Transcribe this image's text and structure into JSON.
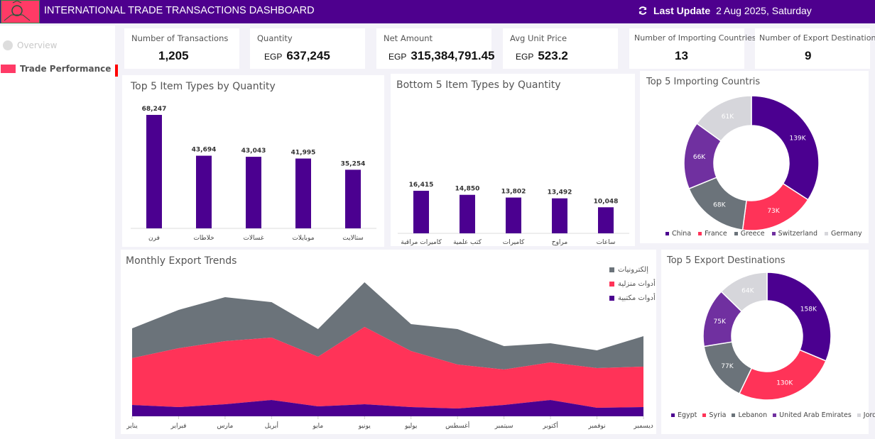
{
  "header": {
    "title": "INTERNATIONAL TRADE TRANSACTIONS DASHBOARD",
    "last_update_label": "Last Update",
    "last_update_value": "2 Aug 2025, Saturday"
  },
  "sidebar": {
    "items": [
      {
        "label": "Overview",
        "active": false
      },
      {
        "label": "Trade Performance",
        "active": true
      }
    ]
  },
  "kpis": [
    {
      "label": "Number of Transactions",
      "prefix": "",
      "value": "1,205"
    },
    {
      "label": "Quantity",
      "prefix": "EGP",
      "value": "637,245"
    },
    {
      "label": "Net Amount",
      "prefix": "EGP",
      "value": "315,384,791.45"
    },
    {
      "label": "Avg Unit Price",
      "prefix": "EGP",
      "value": "523.2"
    },
    {
      "label": "Number of Importing Countries",
      "prefix": "",
      "value": "13"
    },
    {
      "label": "Number of Export Destinations",
      "prefix": "",
      "value": "9"
    }
  ],
  "colors": {
    "purple": "#4b0090",
    "red": "#ff3358",
    "gray": "#6b737a",
    "violet": "#7030a0",
    "light": "#d6d6db"
  },
  "chart_data": [
    {
      "type": "bar",
      "title": "Top 5 Item Types by Quantity",
      "categories": [
        "فرن",
        "خلاطات",
        "غسالات",
        "موبايلات",
        "ستالايت"
      ],
      "values": [
        68247,
        43694,
        43043,
        41995,
        35254
      ],
      "labels": [
        "68,247",
        "43,694",
        "43,043",
        "41,995",
        "35,254"
      ]
    },
    {
      "type": "bar",
      "title": "Bottom 5 Item Types by Quantity",
      "categories": [
        "كاميرات مراقبة",
        "كتب علمية",
        "كاميرات",
        "مراوح",
        "ساعات"
      ],
      "values": [
        16415,
        14850,
        13802,
        13492,
        10048
      ],
      "labels": [
        "16,415",
        "14,850",
        "13,802",
        "13,492",
        "10,048"
      ]
    },
    {
      "type": "pie",
      "title": "Top 5 Importing Countris",
      "categories": [
        "China",
        "France",
        "Greece",
        "Switzerland",
        "Germany"
      ],
      "values": [
        139,
        73,
        68,
        66,
        61
      ],
      "labels": [
        "139K",
        "73K",
        "68K",
        "66K",
        "61K"
      ]
    },
    {
      "type": "area",
      "title": "Monthly Export Trends",
      "categories": [
        "يناير",
        "فبراير",
        "مارس",
        "أبريل",
        "مايو",
        "يونيو",
        "يوليو",
        "أغسطس",
        "سبتمبر",
        "أكتوبر",
        "نوفمبر",
        "ديسمبر"
      ],
      "series": [
        {
          "name": "أدوات مكتبية",
          "values": [
            16,
            13,
            17,
            23,
            14,
            17,
            13,
            11,
            16,
            23,
            12,
            13
          ]
        },
        {
          "name": "أدوات منزلية",
          "values": [
            66,
            83,
            89,
            88,
            70,
            109,
            79,
            62,
            50,
            53,
            56,
            57
          ]
        },
        {
          "name": "إلكترونيات",
          "values": [
            42,
            54,
            62,
            50,
            39,
            63,
            38,
            50,
            33,
            27,
            25,
            43
          ]
        }
      ],
      "legend": "top-right"
    },
    {
      "type": "pie",
      "title": "Top 5 Export Destinations",
      "categories": [
        "Egypt",
        "Syria",
        "Lebanon",
        "United Arab Emirates",
        "Jordan"
      ],
      "values": [
        158,
        130,
        77,
        75,
        64
      ],
      "labels": [
        "158K",
        "130K",
        "77K",
        "75K",
        "64K"
      ]
    }
  ]
}
